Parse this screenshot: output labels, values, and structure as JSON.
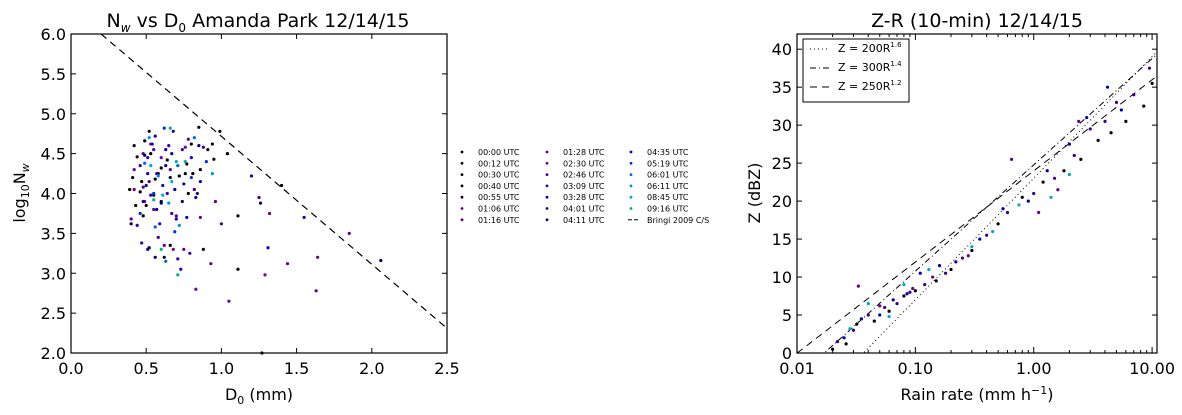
{
  "chart_data": [
    {
      "type": "scatter",
      "title": "N_w vs D_0 Amanda Park 12/14/15",
      "title_parts": {
        "a": "N",
        "a_sub": "w",
        "b": " vs D",
        "b_sub": "0",
        "c": " Amanda Park 12/14/15"
      },
      "xlabel": "D0 (mm)",
      "xlabel_parts": {
        "a": "D",
        "sub": "0",
        "b": " (mm)"
      },
      "ylabel": "log10Nw",
      "ylabel_parts": {
        "a": "log",
        "sub1": "10",
        "b": "N",
        "sub2": "w"
      },
      "xlim": [
        0.0,
        2.5
      ],
      "ylim": [
        2.0,
        6.0
      ],
      "xticks": [
        "0.0",
        "0.5",
        "1.0",
        "1.5",
        "2.0",
        "2.5"
      ],
      "yticks": [
        "2.0",
        "2.5",
        "3.0",
        "3.5",
        "4.0",
        "4.5",
        "5.0",
        "5.5",
        "6.0"
      ],
      "grid": false,
      "legend_position": "outside-right",
      "reference_line": {
        "name": "Bringi 2009 C/S",
        "style": "dashed",
        "points": [
          [
            0.2,
            6.0
          ],
          [
            2.5,
            2.31
          ]
        ]
      },
      "series": [
        {
          "name": "00:00 UTC",
          "color": "#000000",
          "points": [
            [
              0.39,
              4.05
            ],
            [
              0.42,
              4.6
            ],
            [
              0.47,
              4.15
            ],
            [
              0.52,
              3.32
            ],
            [
              0.6,
              4.32
            ],
            [
              0.72,
              4.22
            ],
            [
              0.8,
              4.62
            ],
            [
              0.86,
              4.3
            ],
            [
              1.11,
              3.72
            ],
            [
              1.4,
              4.1
            ]
          ]
        },
        {
          "name": "00:12 UTC",
          "color": "#1a001a",
          "points": [
            [
              0.44,
              4.46
            ],
            [
              0.5,
              3.85
            ],
            [
              0.56,
              4.18
            ],
            [
              0.62,
              3.2
            ],
            [
              0.77,
              4.37
            ],
            [
              0.91,
              4.55
            ]
          ]
        },
        {
          "name": "00:30 UTC",
          "color": "#000010",
          "points": [
            [
              0.4,
              3.62
            ],
            [
              0.46,
              4.02
            ],
            [
              0.49,
              4.66
            ],
            [
              0.55,
              3.98
            ],
            [
              0.64,
              4.42
            ],
            [
              0.78,
              4.0
            ],
            [
              0.85,
              4.83
            ],
            [
              0.94,
              4.62
            ],
            [
              1.04,
              4.5
            ]
          ]
        },
        {
          "name": "00:40 UTC",
          "color": "#000000",
          "points": [
            [
              0.41,
              4.2
            ],
            [
              0.48,
              3.72
            ],
            [
              0.53,
              4.5
            ],
            [
              0.58,
              4.25
            ],
            [
              0.66,
              3.35
            ],
            [
              0.81,
              4.25
            ],
            [
              0.99,
              4.78
            ],
            [
              1.11,
              3.05
            ]
          ]
        },
        {
          "name": "00:55 UTC",
          "color": "#100010",
          "points": [
            [
              0.43,
              3.85
            ],
            [
              0.52,
              4.78
            ],
            [
              0.6,
              3.9
            ],
            [
              0.66,
              4.2
            ],
            [
              0.76,
              4.25
            ],
            [
              0.88,
              3.3
            ],
            [
              0.95,
              4.43
            ],
            [
              1.27,
              2.0
            ]
          ]
        },
        {
          "name": "01:06 UTC",
          "color": "#6a0080",
          "points": [
            [
              0.42,
              4.05
            ],
            [
              0.48,
              4.5
            ],
            [
              0.55,
              3.8
            ],
            [
              0.66,
              4.3
            ],
            [
              0.75,
              3.3
            ],
            [
              0.86,
              3.7
            ],
            [
              0.96,
              3.9
            ],
            [
              1.32,
              3.75
            ],
            [
              1.64,
              3.2
            ],
            [
              1.85,
              3.5
            ]
          ]
        },
        {
          "name": "01:16 UTC",
          "color": "#4b0082",
          "points": [
            [
              0.46,
              4.35
            ],
            [
              0.52,
              4.15
            ],
            [
              0.58,
              3.45
            ],
            [
              0.67,
              3.75
            ],
            [
              0.74,
              4.55
            ],
            [
              0.82,
              4.05
            ],
            [
              1.0,
              3.62
            ],
            [
              1.25,
              3.95
            ]
          ]
        },
        {
          "name": "01:28 UTC",
          "color": "#5a00a0",
          "points": [
            [
              0.4,
              3.68
            ],
            [
              0.48,
              4.08
            ],
            [
              0.55,
              4.55
            ],
            [
              0.62,
              3.35
            ],
            [
              0.7,
              3.72
            ],
            [
              0.78,
              4.68
            ],
            [
              0.93,
              3.12
            ],
            [
              1.05,
              2.65
            ],
            [
              1.44,
              3.12
            ],
            [
              1.63,
              2.78
            ]
          ]
        },
        {
          "name": "02:30 UTC",
          "color": "#7a00a0",
          "points": [
            [
              0.42,
              4.3
            ],
            [
              0.49,
              3.9
            ],
            [
              0.53,
              4.62
            ],
            [
              0.6,
              4.45
            ],
            [
              0.68,
              3.3
            ],
            [
              0.76,
              4.58
            ],
            [
              0.83,
              2.8
            ],
            [
              1.29,
              2.98
            ]
          ]
        },
        {
          "name": "02:46 UTC",
          "color": "#3a00b0",
          "points": [
            [
              0.44,
              3.6
            ],
            [
              0.51,
              4.45
            ],
            [
              0.57,
              4.25
            ],
            [
              0.64,
              4.0
            ],
            [
              0.71,
              3.18
            ],
            [
              0.79,
              3.25
            ],
            [
              0.88,
              4.58
            ]
          ]
        },
        {
          "name": "03:09 UTC",
          "color": "#2a00c0",
          "points": [
            [
              0.47,
              3.38
            ],
            [
              0.53,
              3.98
            ],
            [
              0.59,
              3.62
            ],
            [
              0.65,
              4.6
            ],
            [
              0.73,
              3.05
            ],
            [
              0.8,
              4.45
            ]
          ]
        },
        {
          "name": "03:28 UTC",
          "color": "#1800a8",
          "points": [
            [
              0.48,
              3.9
            ],
            [
              0.51,
              4.25
            ],
            [
              0.56,
              4.72
            ],
            [
              0.63,
              4.55
            ],
            [
              0.7,
              3.68
            ],
            [
              0.83,
              3.95
            ],
            [
              1.2,
              4.22
            ],
            [
              1.31,
              3.32
            ]
          ]
        },
        {
          "name": "04:01 UTC",
          "color": "#101088",
          "points": [
            [
              0.5,
              4.1
            ],
            [
              0.54,
              4.62
            ],
            [
              0.61,
              4.1
            ],
            [
              0.68,
              4.78
            ],
            [
              0.75,
              4.12
            ],
            [
              0.84,
              4.0
            ]
          ]
        },
        {
          "name": "04:11 UTC",
          "color": "#000070",
          "points": [
            [
              0.49,
              4.48
            ],
            [
              0.56,
              3.2
            ],
            [
              0.6,
              3.88
            ],
            [
              0.67,
              4.5
            ],
            [
              0.74,
              3.9
            ],
            [
              0.85,
              4.6
            ],
            [
              1.26,
              3.88
            ],
            [
              2.06,
              3.16
            ]
          ]
        },
        {
          "name": "04:35 UTC",
          "color": "#0000b0",
          "points": [
            [
              0.51,
              3.3
            ],
            [
              0.57,
              3.8
            ],
            [
              0.63,
              4.35
            ],
            [
              0.69,
              4.05
            ],
            [
              0.77,
              3.7
            ],
            [
              0.86,
              4.15
            ],
            [
              1.55,
              3.7
            ]
          ]
        },
        {
          "name": "05:19 UTC",
          "color": "#0030d0",
          "points": [
            [
              0.46,
              3.75
            ],
            [
              0.55,
              4.0
            ],
            [
              0.62,
              4.82
            ],
            [
              0.69,
              3.52
            ],
            [
              0.8,
              4.2
            ],
            [
              0.9,
              4.4
            ]
          ]
        },
        {
          "name": "06:01 UTC",
          "color": "#0060e0",
          "points": [
            [
              0.49,
              4.38
            ],
            [
              0.56,
              3.58
            ],
            [
              0.63,
              3.15
            ],
            [
              0.71,
              4.35
            ],
            [
              0.82,
              4.7
            ]
          ]
        },
        {
          "name": "06:11 UTC",
          "color": "#0090e0",
          "points": [
            [
              0.52,
              4.7
            ],
            [
              0.58,
              4.22
            ],
            [
              0.65,
              3.88
            ],
            [
              0.72,
              3.6
            ],
            [
              0.94,
              4.25
            ]
          ]
        },
        {
          "name": "08:45 UTC",
          "color": "#00a8d0",
          "points": [
            [
              0.53,
              4.35
            ],
            [
              0.61,
              3.98
            ],
            [
              0.67,
              4.15
            ],
            [
              0.7,
              4.4
            ]
          ]
        },
        {
          "name": "09:16 UTC",
          "color": "#00b090",
          "points": [
            [
              0.55,
              3.92
            ],
            [
              0.6,
              3.3
            ],
            [
              0.66,
              4.82
            ],
            [
              0.71,
              2.98
            ],
            [
              0.76,
              4.4
            ]
          ]
        }
      ]
    },
    {
      "type": "scatter",
      "title": "Z-R (10-min) 12/14/15",
      "xlabel": "Rain rate (mm h-1)",
      "xlabel_parts": {
        "a": "Rain rate (mm h",
        "sup": "−1",
        "b": ")"
      },
      "ylabel": "Z (dBZ)",
      "x_scale": "log",
      "xlim": [
        0.01,
        11
      ],
      "ylim": [
        0,
        42
      ],
      "xticks": [
        "0.01",
        "0.10",
        "1.00",
        "10.00"
      ],
      "yticks": [
        "0",
        "5",
        "10",
        "15",
        "20",
        "25",
        "30",
        "35",
        "40"
      ],
      "grid": false,
      "legend_position": "upper-left",
      "legend": [
        {
          "text": "Z = 200R",
          "sup": "1.6",
          "style": "dotted",
          "a": 200,
          "b": 1.6
        },
        {
          "text": "Z = 300R",
          "sup": "1.4",
          "style": "dashdot",
          "a": 300,
          "b": 1.4
        },
        {
          "text": "Z = 250R",
          "sup": "1.2",
          "style": "dashed",
          "a": 250,
          "b": 1.2
        }
      ],
      "series": [
        {
          "name": "points-1",
          "color": "#000000",
          "points": [
            [
              0.02,
              0.5
            ],
            [
              0.026,
              1.2
            ],
            [
              0.032,
              3.8
            ],
            [
              0.045,
              4.2
            ],
            [
              0.06,
              5.5
            ],
            [
              0.08,
              7.5
            ],
            [
              0.1,
              8.2
            ],
            [
              0.15,
              9.5
            ],
            [
              0.2,
              11.0
            ],
            [
              0.3,
              13.5
            ],
            [
              0.5,
              17.0
            ],
            [
              0.8,
              20.5
            ],
            [
              1.2,
              22.5
            ],
            [
              1.8,
              24.0
            ],
            [
              2.5,
              25.5
            ],
            [
              3.5,
              28.0
            ],
            [
              4.5,
              29.0
            ],
            [
              6.0,
              30.5
            ],
            [
              8.5,
              32.5
            ],
            [
              10.0,
              35.5
            ]
          ]
        },
        {
          "name": "points-2",
          "color": "#3a0080",
          "points": [
            [
              0.022,
              1.5
            ],
            [
              0.03,
              3.0
            ],
            [
              0.04,
              5.0
            ],
            [
              0.055,
              6.0
            ],
            [
              0.07,
              6.5
            ],
            [
              0.09,
              8.0
            ],
            [
              0.12,
              9.0
            ],
            [
              0.18,
              10.5
            ],
            [
              0.25,
              12.5
            ],
            [
              0.4,
              15.5
            ],
            [
              0.6,
              18.5
            ],
            [
              1.0,
              21.0
            ],
            [
              1.5,
              23.0
            ],
            [
              2.2,
              26.0
            ],
            [
              3.0,
              29.5
            ],
            [
              4.0,
              30.5
            ],
            [
              5.0,
              33.0
            ],
            [
              7.0,
              34.0
            ],
            [
              9.5,
              37.5
            ]
          ]
        },
        {
          "name": "points-3",
          "color": "#0000b0",
          "points": [
            [
              0.025,
              2.0
            ],
            [
              0.035,
              4.5
            ],
            [
              0.05,
              5.0
            ],
            [
              0.065,
              7.0
            ],
            [
              0.085,
              7.8
            ],
            [
              0.11,
              10.5
            ],
            [
              0.16,
              11.5
            ],
            [
              0.22,
              12.0
            ],
            [
              0.35,
              15.0
            ],
            [
              0.55,
              19.0
            ],
            [
              0.9,
              20.0
            ],
            [
              1.3,
              24.0
            ],
            [
              2.0,
              27.5
            ],
            [
              2.8,
              31.0
            ],
            [
              4.2,
              35.0
            ],
            [
              5.5,
              32.0
            ]
          ]
        },
        {
          "name": "points-4",
          "color": "#00a8d0",
          "points": [
            [
              0.028,
              3.2
            ],
            [
              0.04,
              6.5
            ],
            [
              0.06,
              4.8
            ],
            [
              0.08,
              9.0
            ],
            [
              0.13,
              11.0
            ],
            [
              0.3,
              14.0
            ],
            [
              0.45,
              16.0
            ],
            [
              0.75,
              19.5
            ],
            [
              1.4,
              20.5
            ],
            [
              2.0,
              23.5
            ]
          ]
        },
        {
          "name": "points-5",
          "color": "#6a0080",
          "points": [
            [
              0.033,
              8.8
            ],
            [
              0.05,
              6.2
            ],
            [
              0.095,
              8.5
            ],
            [
              0.14,
              10.0
            ],
            [
              0.28,
              12.8
            ],
            [
              0.65,
              25.5
            ],
            [
              1.1,
              18.5
            ],
            [
              1.6,
              21.5
            ],
            [
              2.4,
              30.5
            ]
          ]
        }
      ]
    }
  ]
}
